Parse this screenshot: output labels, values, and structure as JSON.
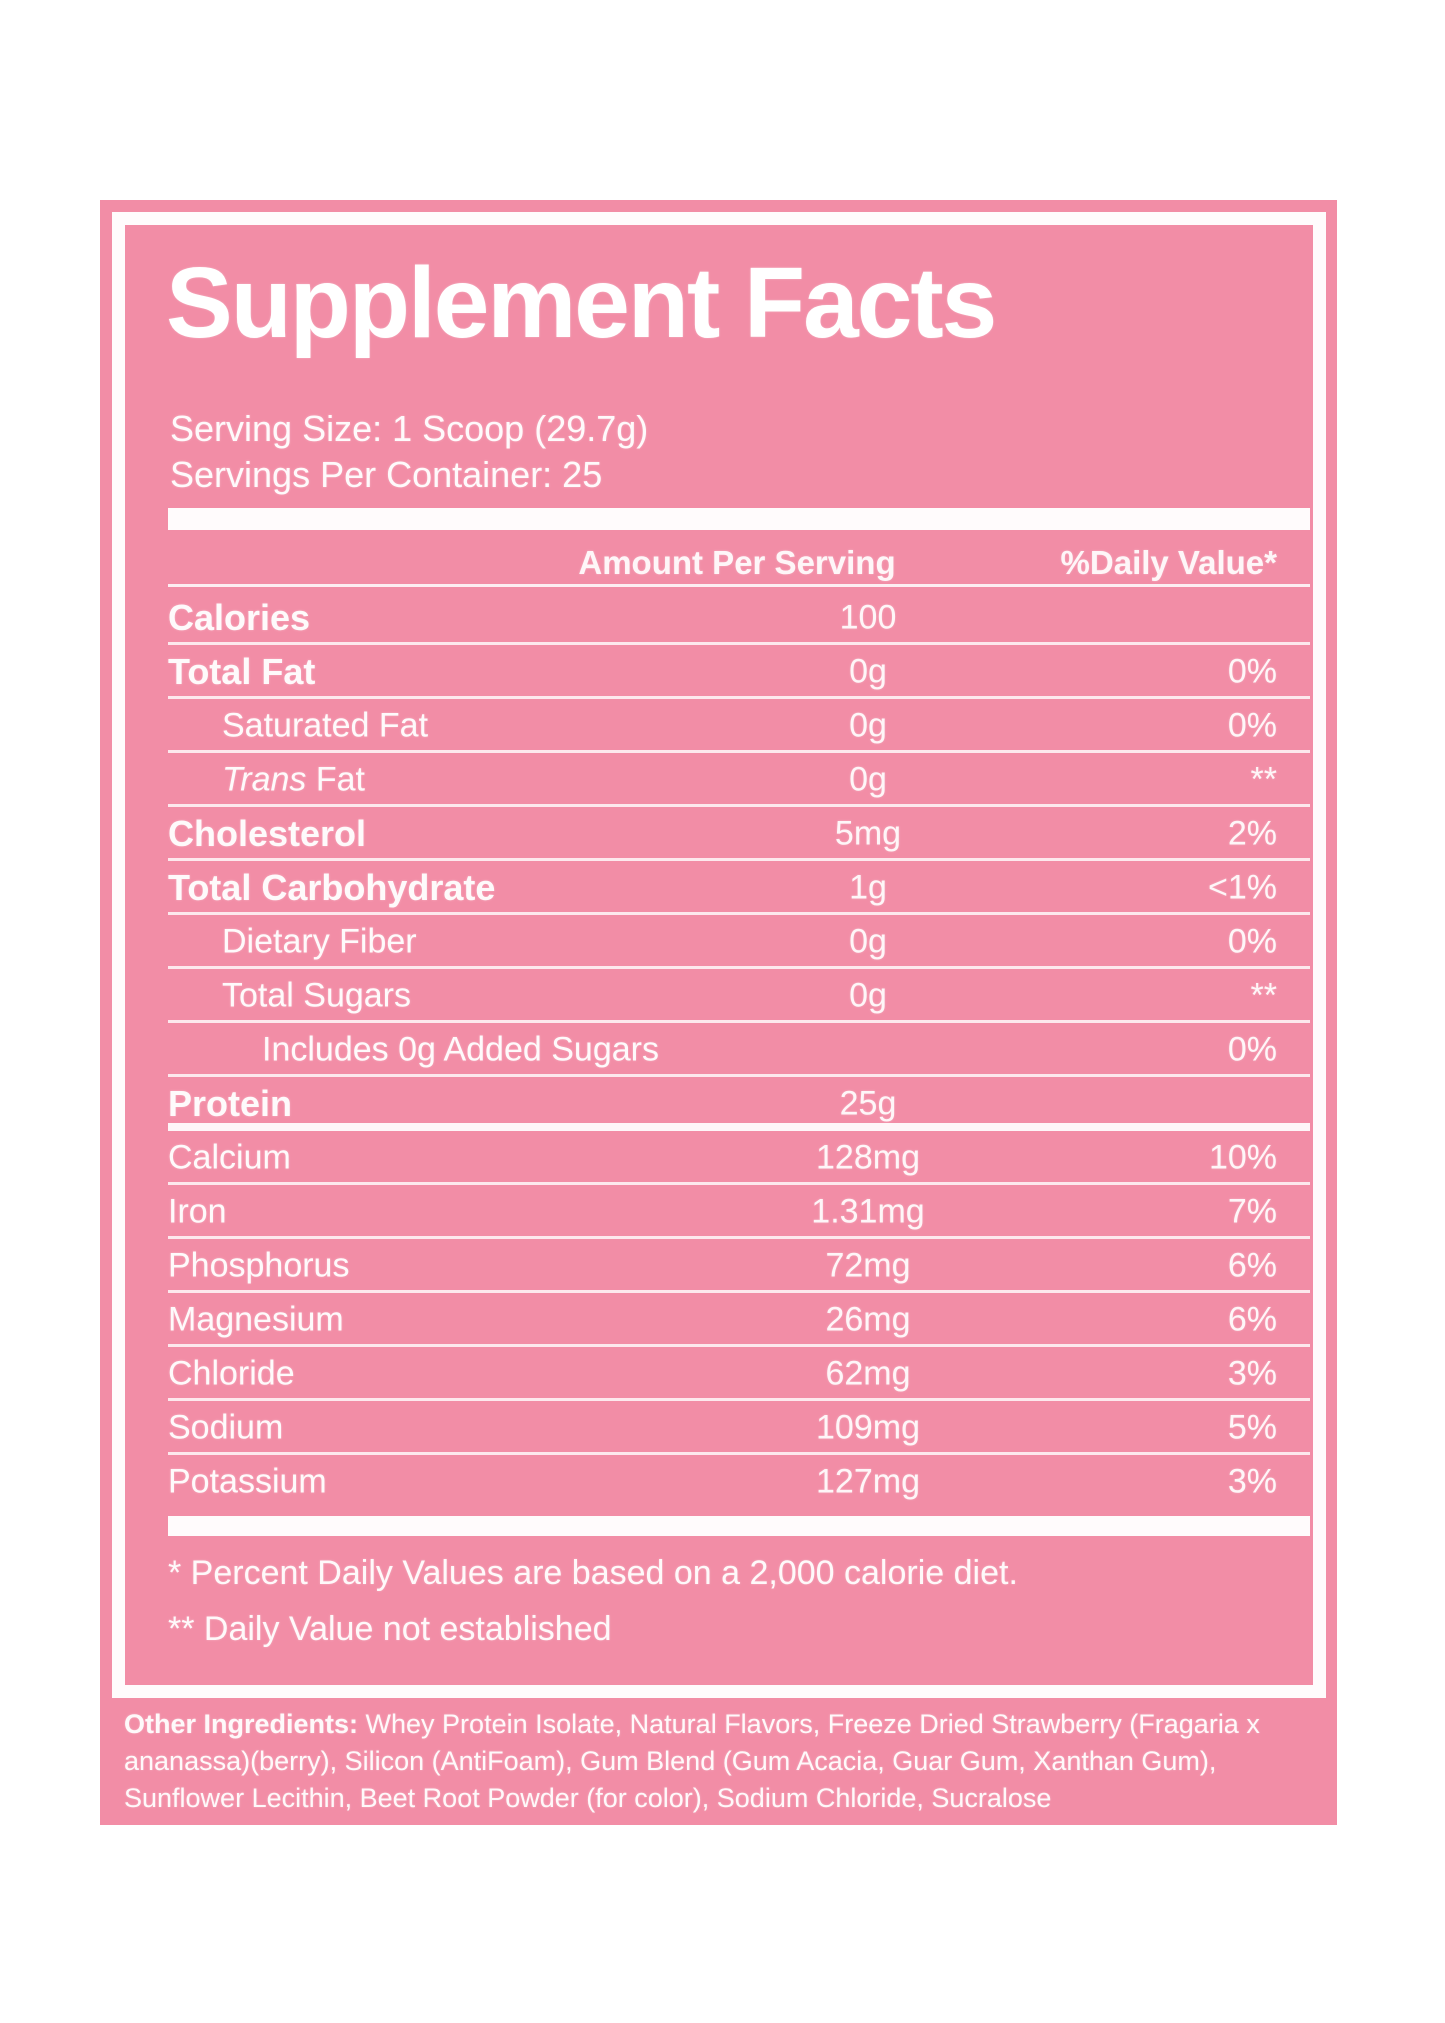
{
  "colors": {
    "panel_pink": "#F28DA6",
    "page_bg": "#FFFFFF",
    "text_white": "#FFFFFF"
  },
  "label": {
    "title": "Supplement Facts",
    "serving_size": "Serving Size: 1 Scoop (29.7g)",
    "servings_per_container": "Servings Per Container: 25",
    "columns": {
      "amount": "Amount Per Serving",
      "daily_value": "%Daily Value*"
    },
    "rows": [
      {
        "label": "Calories",
        "amount": "100",
        "dv": "",
        "indent": 0,
        "bold": true,
        "divider": "thin"
      },
      {
        "label": "Total Fat",
        "amount": "0g",
        "dv": "0%",
        "indent": 0,
        "bold": true,
        "divider": "thin"
      },
      {
        "label": "Saturated Fat",
        "amount": "0g",
        "dv": "0%",
        "indent": 1,
        "bold": false,
        "divider": "thin"
      },
      {
        "label": "Trans Fat",
        "label_parts": [
          {
            "text": "Trans ",
            "italic": true
          },
          {
            "text": "Fat",
            "italic": false
          }
        ],
        "amount": "0g",
        "dv": "**",
        "indent": 1,
        "bold": false,
        "divider": "thin"
      },
      {
        "label": "Cholesterol",
        "amount": "5mg",
        "dv": "2%",
        "indent": 0,
        "bold": true,
        "divider": "thin"
      },
      {
        "label": "Total Carbohydrate",
        "amount": "1g",
        "dv": "<1%",
        "indent": 0,
        "bold": true,
        "divider": "thin"
      },
      {
        "label": "Dietary Fiber",
        "amount": "0g",
        "dv": "0%",
        "indent": 1,
        "bold": false,
        "divider": "thin"
      },
      {
        "label": "Total Sugars",
        "amount": "0g",
        "dv": "**",
        "indent": 1,
        "bold": false,
        "divider": "thin"
      },
      {
        "label": "Includes 0g Added Sugars",
        "amount": "",
        "dv": "0%",
        "indent": 2,
        "bold": false,
        "divider": "thin"
      },
      {
        "label": "Protein",
        "amount": "25g",
        "dv": "",
        "indent": 0,
        "bold": true,
        "divider": "medium"
      },
      {
        "label": "Calcium",
        "amount": "128mg",
        "dv": "10%",
        "indent": 0,
        "bold": false,
        "divider": "thin"
      },
      {
        "label": "Iron",
        "amount": "1.31mg",
        "dv": "7%",
        "indent": 0,
        "bold": false,
        "divider": "thin"
      },
      {
        "label": "Phosphorus",
        "amount": "72mg",
        "dv": "6%",
        "indent": 0,
        "bold": false,
        "divider": "thin"
      },
      {
        "label": "Magnesium",
        "amount": "26mg",
        "dv": "6%",
        "indent": 0,
        "bold": false,
        "divider": "thin"
      },
      {
        "label": "Chloride",
        "amount": "62mg",
        "dv": "3%",
        "indent": 0,
        "bold": false,
        "divider": "thin"
      },
      {
        "label": "Sodium",
        "amount": "109mg",
        "dv": "5%",
        "indent": 0,
        "bold": false,
        "divider": "thin"
      },
      {
        "label": "Potassium",
        "amount": "127mg",
        "dv": "3%",
        "indent": 0,
        "bold": false,
        "divider": "none"
      }
    ],
    "footnotes": {
      "daily_values": "* Percent Daily Values are based on a 2,000 calorie diet.",
      "not_established": "** Daily Value not established"
    },
    "other_ingredients": {
      "label": "Other Ingredients:",
      "text": " Whey Protein Isolate, Natural Flavors, Freeze Dried Strawberry (Fragaria x ananassa)(berry), Silicon (AntiFoam), Gum Blend (Gum Acacia, Guar Gum, Xanthan Gum), Sunflower Lecithin, Beet Root Powder (for color), Sodium Chloride, Sucralose"
    }
  }
}
